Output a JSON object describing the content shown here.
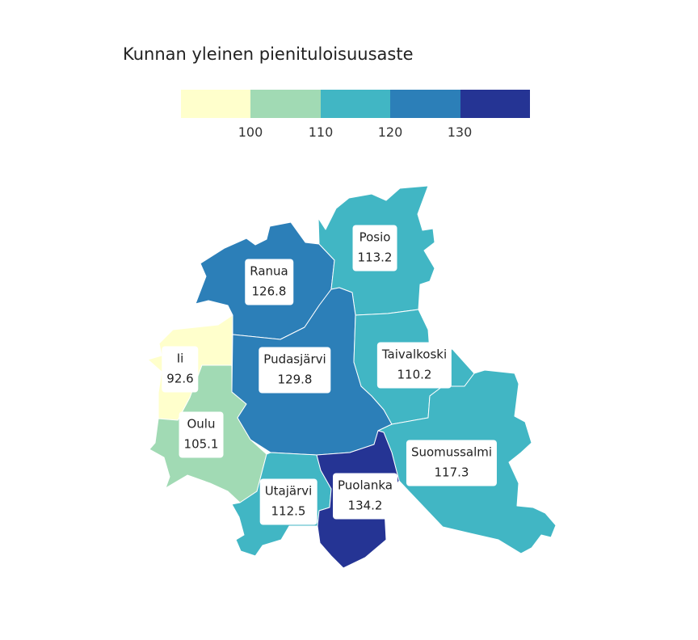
{
  "title": "Kunnan yleinen pienituloisuusaste",
  "legend": {
    "ticks": [
      "100",
      "110",
      "120",
      "130"
    ],
    "colors": [
      "#ffffcc",
      "#a1dab4",
      "#41b6c4",
      "#2c7fb8",
      "#253494"
    ]
  },
  "regions": [
    {
      "name": "Ii",
      "value": "92.6",
      "color": "#ffffcc"
    },
    {
      "name": "Oulu",
      "value": "105.1",
      "color": "#a1dab4"
    },
    {
      "name": "Ranua",
      "value": "126.8",
      "color": "#2c7fb8"
    },
    {
      "name": "Posio",
      "value": "113.2",
      "color": "#41b6c4"
    },
    {
      "name": "Pudasjärvi",
      "value": "129.8",
      "color": "#2c7fb8"
    },
    {
      "name": "Taivalkoski",
      "value": "110.2",
      "color": "#41b6c4"
    },
    {
      "name": "Suomussalmi",
      "value": "117.3",
      "color": "#41b6c4"
    },
    {
      "name": "Utajärvi",
      "value": "112.5",
      "color": "#41b6c4"
    },
    {
      "name": "Puolanka",
      "value": "134.2",
      "color": "#253494"
    }
  ]
}
